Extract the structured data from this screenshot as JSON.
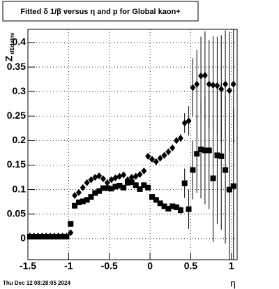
{
  "chart_data": {
    "type": "scatter",
    "title": "Fitted δ 1/β versus η and p for Global kaon+",
    "x_label": "η",
    "y_label": "Z",
    "y_label_sub": "dEdxInv",
    "footer": "Thu Dec 12 08:28:05 2024",
    "x": [
      -1.475,
      -1.425,
      -1.375,
      -1.325,
      -1.275,
      -1.225,
      -1.175,
      -1.125,
      -1.075,
      -1.025,
      -0.975,
      -0.925,
      -0.875,
      -0.825,
      -0.775,
      -0.725,
      -0.675,
      -0.625,
      -0.575,
      -0.525,
      -0.475,
      -0.425,
      -0.375,
      -0.325,
      -0.275,
      -0.225,
      -0.175,
      -0.125,
      -0.075,
      -0.025,
      0.025,
      0.075,
      0.125,
      0.175,
      0.225,
      0.275,
      0.325,
      0.375,
      0.425,
      0.475,
      0.525,
      0.575,
      0.625,
      0.675,
      0.725,
      0.775,
      0.825,
      0.875,
      0.925,
      0.975,
      1.025
    ],
    "series": [
      {
        "name": "diamond",
        "marker": "diamond",
        "color": "#000000",
        "values": [
          0.005,
          0.005,
          0.005,
          0.005,
          0.005,
          0.005,
          0.005,
          0.005,
          0.005,
          0.005,
          0.012,
          0.088,
          0.094,
          0.104,
          0.114,
          0.12,
          0.125,
          0.128,
          0.122,
          0.114,
          0.12,
          0.124,
          0.127,
          0.13,
          0.12,
          0.125,
          0.127,
          0.131,
          0.138,
          0.168,
          0.162,
          0.157,
          0.164,
          0.17,
          0.177,
          0.185,
          0.2,
          0.205,
          0.236,
          0.24,
          0.308,
          0.315,
          0.332,
          0.333,
          0.315,
          0.313,
          0.312,
          0.305,
          0.315,
          0.302,
          0.315
        ],
        "errors": [
          0.002,
          0.002,
          0.002,
          0.002,
          0.002,
          0.002,
          0.002,
          0.002,
          0.002,
          0.002,
          0.003,
          0.003,
          0.003,
          0.003,
          0.003,
          0.003,
          0.003,
          0.003,
          0.003,
          0.003,
          0.003,
          0.003,
          0.003,
          0.003,
          0.003,
          0.003,
          0.003,
          0.003,
          0.003,
          0.003,
          0.003,
          0.003,
          0.003,
          0.003,
          0.004,
          0.005,
          0.006,
          0.008,
          0.02,
          0.03,
          0.06,
          0.07,
          0.08,
          0.09,
          0.09,
          0.1,
          0.1,
          0.11,
          0.11,
          0.12,
          0.12
        ]
      },
      {
        "name": "square",
        "marker": "square",
        "color": "#000000",
        "values": [
          0.004,
          0.004,
          0.004,
          0.004,
          0.004,
          0.004,
          0.004,
          0.004,
          0.004,
          0.004,
          0.03,
          0.067,
          0.074,
          0.076,
          0.079,
          0.085,
          0.093,
          0.097,
          0.103,
          0.103,
          0.102,
          0.106,
          0.108,
          0.104,
          0.114,
          0.115,
          0.109,
          0.101,
          0.109,
          0.104,
          0.085,
          0.079,
          0.072,
          0.066,
          0.061,
          0.066,
          0.064,
          0.058,
          0.113,
          0.06,
          0.14,
          0.173,
          0.182,
          0.18,
          0.18,
          0.123,
          0.17,
          0.168,
          0.14,
          0.1,
          0.107
        ],
        "errors": [
          0.002,
          0.002,
          0.002,
          0.002,
          0.002,
          0.002,
          0.002,
          0.002,
          0.002,
          0.002,
          0.003,
          0.003,
          0.003,
          0.003,
          0.003,
          0.003,
          0.003,
          0.003,
          0.003,
          0.003,
          0.003,
          0.003,
          0.003,
          0.003,
          0.003,
          0.003,
          0.003,
          0.003,
          0.003,
          0.003,
          0.003,
          0.003,
          0.003,
          0.003,
          0.004,
          0.005,
          0.006,
          0.008,
          0.03,
          0.04,
          0.06,
          0.08,
          0.1,
          0.11,
          0.12,
          0.13,
          0.14,
          0.15,
          0.15,
          0.16,
          0.16
        ]
      }
    ],
    "xlim": [
      -1.5,
      1.07
    ],
    "ylim": [
      -0.043,
      0.427
    ],
    "xticks": [
      -1.5,
      -1,
      -0.5,
      0,
      0.5,
      1
    ],
    "yticks": [
      0,
      0.05,
      0.1,
      0.15,
      0.2,
      0.25,
      0.3,
      0.35,
      0.4
    ],
    "grid": true
  }
}
